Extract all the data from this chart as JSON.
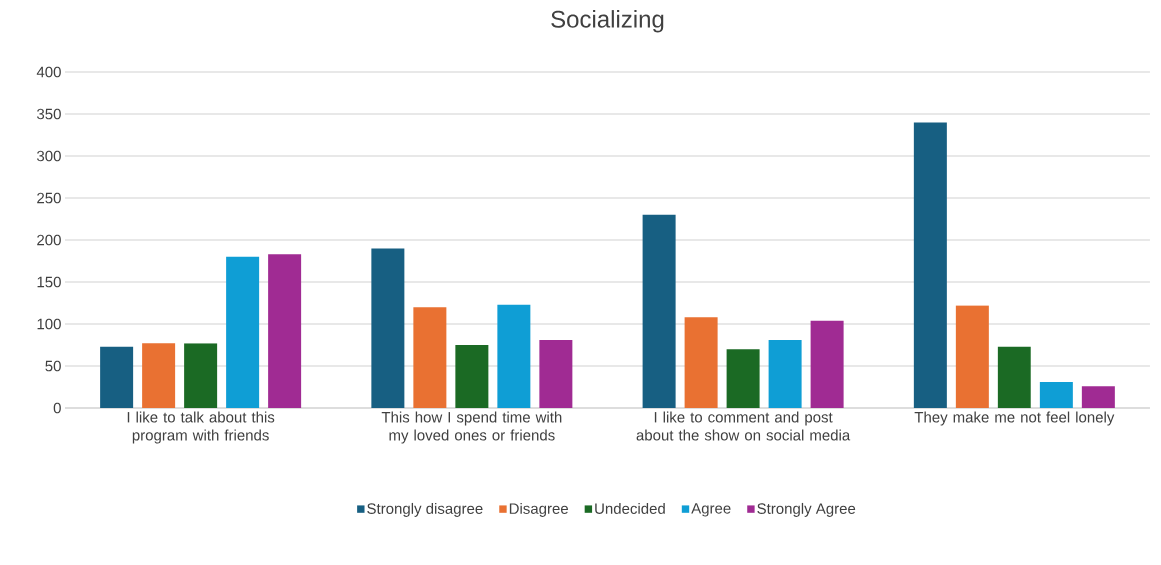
{
  "chart_data": {
    "type": "bar",
    "title": "Socializing",
    "categories": [
      "I like to talk about this program with friends",
      "This how I spend time with my loved ones or friends",
      "I like to comment and post about the show on social media",
      "They make me not feel lonely"
    ],
    "series": [
      {
        "name": "Strongly disagree",
        "color": "#175f82",
        "values": [
          73,
          190,
          230,
          340
        ]
      },
      {
        "name": "Disagree",
        "color": "#e97132",
        "values": [
          77,
          120,
          108,
          122
        ]
      },
      {
        "name": "Undecided",
        "color": "#1b6a24",
        "values": [
          77,
          75,
          70,
          73
        ]
      },
      {
        "name": "Agree",
        "color": "#0f9ed5",
        "values": [
          180,
          123,
          81,
          31
        ]
      },
      {
        "name": "Strongly Agree",
        "color": "#a02b93",
        "values": [
          183,
          81,
          104,
          26
        ]
      }
    ],
    "ylim": [
      0,
      400
    ],
    "yticks": [
      0,
      50,
      100,
      150,
      200,
      250,
      300,
      350,
      400
    ],
    "grid": "y",
    "legend": "bottom"
  }
}
